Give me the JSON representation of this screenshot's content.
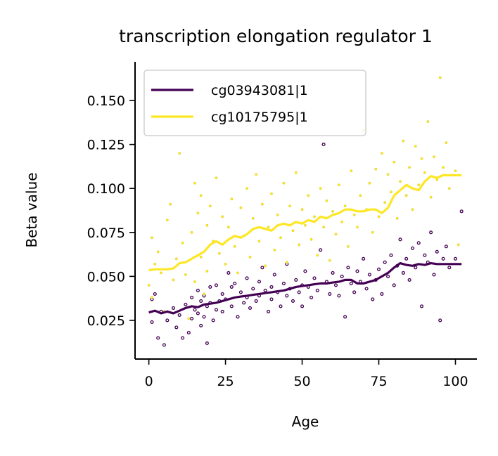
{
  "chart_data": {
    "type": "line",
    "title": "transcription elongation regulator 1",
    "xlabel": "Age",
    "ylabel": "Beta value",
    "xlim": [
      -4.5,
      107
    ],
    "ylim": [
      0.003,
      0.172
    ],
    "xticks": [
      0,
      25,
      50,
      75,
      100
    ],
    "xtick_labels": [
      "0",
      "25",
      "50",
      "75",
      "100"
    ],
    "yticks": [
      0.025,
      0.05,
      0.075,
      0.1,
      0.125,
      0.15
    ],
    "ytick_labels": [
      "0.025",
      "0.050",
      "0.075",
      "0.100",
      "0.125",
      "0.150"
    ],
    "legend_position": "top-left",
    "grid": false,
    "series": [
      {
        "name": "cg03943081|1",
        "color": "#440154",
        "line": {
          "x": [
            0,
            2,
            4,
            6,
            8,
            10,
            12,
            14,
            16,
            18,
            20,
            22,
            24,
            26,
            28,
            30,
            32,
            34,
            36,
            38,
            40,
            42,
            44,
            46,
            48,
            50,
            52,
            54,
            56,
            58,
            60,
            62,
            64,
            66,
            68,
            70,
            72,
            74,
            76,
            78,
            80,
            82,
            84,
            86,
            88,
            90,
            92,
            94,
            96,
            98,
            100,
            102
          ],
          "y": [
            0.0295,
            0.0305,
            0.029,
            0.03,
            0.029,
            0.0305,
            0.032,
            0.033,
            0.0325,
            0.034,
            0.0345,
            0.035,
            0.036,
            0.037,
            0.038,
            0.0385,
            0.039,
            0.0395,
            0.04,
            0.0405,
            0.041,
            0.0415,
            0.042,
            0.043,
            0.044,
            0.0445,
            0.045,
            0.0455,
            0.046,
            0.046,
            0.0465,
            0.047,
            0.048,
            0.048,
            0.046,
            0.046,
            0.047,
            0.048,
            0.05,
            0.052,
            0.055,
            0.0575,
            0.0565,
            0.056,
            0.057,
            0.0565,
            0.0575,
            0.057,
            0.057,
            0.057,
            0.057,
            0.057
          ]
        },
        "points": {
          "x": [
            1,
            1,
            2,
            3,
            4,
            5,
            6,
            8,
            9,
            10,
            11,
            12,
            13,
            14,
            14,
            15,
            16,
            16,
            17,
            17,
            18,
            18,
            19,
            19,
            20,
            20,
            21,
            22,
            22,
            23,
            24,
            24,
            25,
            26,
            27,
            27,
            28,
            29,
            30,
            31,
            32,
            32,
            33,
            34,
            35,
            36,
            36,
            37,
            38,
            39,
            40,
            40,
            41,
            42,
            43,
            44,
            45,
            45,
            46,
            47,
            48,
            49,
            50,
            50,
            51,
            52,
            53,
            54,
            55,
            56,
            57,
            58,
            59,
            60,
            61,
            62,
            63,
            64,
            65,
            66,
            67,
            68,
            69,
            70,
            71,
            72,
            73,
            74,
            75,
            76,
            77,
            78,
            79,
            80,
            81,
            82,
            83,
            84,
            85,
            86,
            87,
            88,
            89,
            90,
            91,
            92,
            93,
            94,
            95,
            96,
            97,
            98,
            100,
            102
          ],
          "y": [
            0.024,
            0.037,
            0.04,
            0.015,
            0.03,
            0.011,
            0.025,
            0.032,
            0.021,
            0.028,
            0.015,
            0.034,
            0.018,
            0.038,
            0.026,
            0.031,
            0.042,
            0.029,
            0.036,
            0.022,
            0.039,
            0.027,
            0.033,
            0.012,
            0.044,
            0.035,
            0.025,
            0.045,
            0.031,
            0.036,
            0.03,
            0.04,
            0.037,
            0.052,
            0.033,
            0.044,
            0.046,
            0.027,
            0.041,
            0.035,
            0.049,
            0.038,
            0.032,
            0.043,
            0.036,
            0.047,
            0.039,
            0.055,
            0.042,
            0.03,
            0.044,
            0.037,
            0.051,
            0.041,
            0.033,
            0.046,
            0.039,
            0.057,
            0.043,
            0.036,
            0.048,
            0.041,
            0.045,
            0.033,
            0.053,
            0.044,
            0.038,
            0.049,
            0.042,
            0.065,
            0.125,
            0.047,
            0.04,
            0.052,
            0.045,
            0.039,
            0.05,
            0.027,
            0.055,
            0.046,
            0.041,
            0.053,
            0.047,
            0.06,
            0.043,
            0.051,
            0.037,
            0.048,
            0.054,
            0.04,
            0.058,
            0.05,
            0.062,
            0.045,
            0.056,
            0.071,
            0.052,
            0.06,
            0.048,
            0.066,
            0.055,
            0.069,
            0.033,
            0.062,
            0.058,
            0.075,
            0.051,
            0.064,
            0.025,
            0.06,
            0.067,
            0.055,
            0.06,
            0.087
          ]
        }
      },
      {
        "name": "cg10175795|1",
        "color": "#fde725",
        "line": {
          "x": [
            0,
            2,
            4,
            6,
            8,
            10,
            12,
            14,
            16,
            18,
            20,
            22,
            24,
            26,
            28,
            30,
            32,
            34,
            36,
            38,
            40,
            42,
            44,
            46,
            48,
            50,
            52,
            54,
            56,
            58,
            60,
            62,
            64,
            66,
            68,
            70,
            72,
            74,
            76,
            78,
            80,
            82,
            84,
            86,
            88,
            90,
            92,
            94,
            96,
            98,
            100,
            102
          ],
          "y": [
            0.0535,
            0.054,
            0.054,
            0.054,
            0.0545,
            0.0575,
            0.058,
            0.06,
            0.062,
            0.064,
            0.068,
            0.07,
            0.068,
            0.071,
            0.073,
            0.072,
            0.074,
            0.077,
            0.078,
            0.077,
            0.076,
            0.079,
            0.08,
            0.079,
            0.081,
            0.08,
            0.082,
            0.081,
            0.084,
            0.083,
            0.085,
            0.086,
            0.088,
            0.088,
            0.087,
            0.087,
            0.088,
            0.088,
            0.086,
            0.089,
            0.096,
            0.099,
            0.102,
            0.1,
            0.099,
            0.104,
            0.107,
            0.106,
            0.1075,
            0.1075,
            0.1075,
            0.1075
          ]
        },
        "points": {
          "x": [
            0,
            1,
            1,
            2,
            3,
            4,
            5,
            6,
            7,
            8,
            9,
            10,
            11,
            12,
            13,
            14,
            15,
            15,
            16,
            17,
            17,
            18,
            19,
            19,
            20,
            21,
            22,
            23,
            24,
            25,
            26,
            27,
            28,
            29,
            30,
            31,
            32,
            33,
            34,
            35,
            36,
            37,
            38,
            39,
            40,
            41,
            42,
            43,
            44,
            45,
            46,
            47,
            48,
            49,
            50,
            51,
            52,
            53,
            54,
            55,
            56,
            57,
            58,
            59,
            60,
            61,
            62,
            63,
            64,
            65,
            66,
            67,
            68,
            69,
            70,
            71,
            72,
            73,
            74,
            75,
            76,
            77,
            78,
            79,
            80,
            81,
            82,
            83,
            84,
            85,
            86,
            87,
            88,
            89,
            90,
            91,
            92,
            93,
            94,
            95,
            96,
            97,
            98,
            100,
            101
          ],
          "y": [
            0.045,
            0.072,
            0.038,
            0.057,
            0.064,
            0.052,
            0.03,
            0.082,
            0.091,
            0.048,
            0.06,
            0.12,
            0.069,
            0.051,
            0.026,
            0.075,
            0.103,
            0.047,
            0.086,
            0.061,
            0.096,
            0.04,
            0.079,
            0.053,
            0.09,
            0.07,
            0.106,
            0.063,
            0.084,
            0.057,
            0.078,
            0.094,
            0.067,
            0.052,
            0.089,
            0.073,
            0.1,
            0.061,
            0.083,
            0.108,
            0.07,
            0.091,
            0.056,
            0.078,
            0.097,
            0.065,
            0.085,
            0.072,
            0.103,
            0.058,
            0.09,
            0.076,
            0.109,
            0.068,
            0.088,
            0.079,
            0.096,
            0.071,
            0.084,
            0.062,
            0.1,
            0.078,
            0.093,
            0.059,
            0.087,
            0.074,
            0.102,
            0.081,
            0.09,
            0.067,
            0.11,
            0.085,
            0.078,
            0.096,
            0.133,
            0.088,
            0.103,
            0.075,
            0.111,
            0.084,
            0.12,
            0.092,
            0.108,
            0.098,
            0.115,
            0.083,
            0.104,
            0.127,
            0.096,
            0.112,
            0.088,
            0.124,
            0.102,
            0.117,
            0.109,
            0.138,
            0.095,
            0.118,
            0.105,
            0.163,
            0.112,
            0.126,
            0.1,
            0.11,
            0.068
          ]
        }
      }
    ]
  }
}
